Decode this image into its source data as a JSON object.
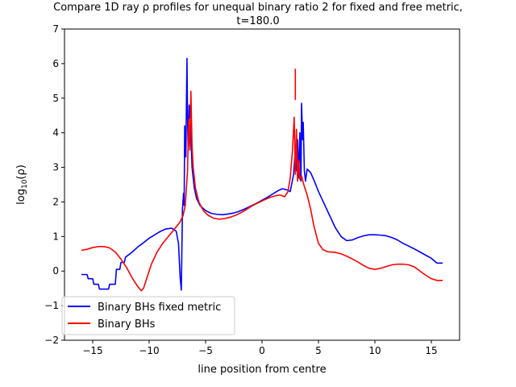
{
  "chart_data": {
    "type": "line",
    "title_line1": "Compare 1D ray ρ profiles for unequal binary ratio 2 for fixed and free metric,",
    "title_line2": "t=180.0",
    "xlabel": "line position from centre",
    "ylabel": "log10(ρ)",
    "ylabel_base": "log",
    "ylabel_sub": "10",
    "ylabel_tail": "(ρ)",
    "xlim": [
      -17.5,
      17.5
    ],
    "ylim": [
      -2,
      7
    ],
    "xticks": [
      -15,
      -10,
      -5,
      0,
      5,
      10,
      15
    ],
    "xtick_labels": [
      "−15",
      "−10",
      "−5",
      "0",
      "5",
      "10",
      "15"
    ],
    "yticks": [
      -2,
      -1,
      0,
      1,
      2,
      3,
      4,
      5,
      6,
      7
    ],
    "ytick_labels": [
      "−2",
      "−1",
      "0",
      "1",
      "2",
      "3",
      "4",
      "5",
      "6",
      "7"
    ],
    "legend_position": "lower-left",
    "series": [
      {
        "name": "Binary BHs fixed metric",
        "color": "#0000ff",
        "points": [
          [
            -16,
            -0.1
          ],
          [
            -15.5,
            -0.1
          ],
          [
            -15.4,
            -0.22
          ],
          [
            -15,
            -0.22
          ],
          [
            -14.9,
            -0.38
          ],
          [
            -14.5,
            -0.38
          ],
          [
            -14.4,
            -0.52
          ],
          [
            -13.6,
            -0.52
          ],
          [
            -13.5,
            -0.38
          ],
          [
            -13,
            -0.38
          ],
          [
            -12.9,
            0.05
          ],
          [
            -12.6,
            0.05
          ],
          [
            -12.5,
            0.25
          ],
          [
            -12.2,
            0.25
          ],
          [
            -12.1,
            0.4
          ],
          [
            -11.5,
            0.55
          ],
          [
            -11,
            0.7
          ],
          [
            -10.5,
            0.82
          ],
          [
            -10,
            0.95
          ],
          [
            -9.5,
            1.05
          ],
          [
            -9,
            1.15
          ],
          [
            -8.5,
            1.22
          ],
          [
            -8,
            1.24
          ],
          [
            -7.6,
            1.15
          ],
          [
            -7.4,
            0.8
          ],
          [
            -7.25,
            -0.2
          ],
          [
            -7.15,
            -0.55
          ],
          [
            -7.05,
            1.8
          ],
          [
            -6.95,
            2.25
          ],
          [
            -6.9,
            1.9
          ],
          [
            -6.85,
            4.2
          ],
          [
            -6.75,
            3.3
          ],
          [
            -6.65,
            6.15
          ],
          [
            -6.6,
            4.5
          ],
          [
            -6.55,
            3.6
          ],
          [
            -6.45,
            4.8
          ],
          [
            -6.35,
            4.4
          ],
          [
            -6.2,
            3.0
          ],
          [
            -6.0,
            2.4
          ],
          [
            -5.8,
            2.1
          ],
          [
            -5.5,
            1.9
          ],
          [
            -5,
            1.75
          ],
          [
            -4.5,
            1.67
          ],
          [
            -4,
            1.64
          ],
          [
            -3.5,
            1.63
          ],
          [
            -3,
            1.65
          ],
          [
            -2.5,
            1.68
          ],
          [
            -2,
            1.73
          ],
          [
            -1.5,
            1.8
          ],
          [
            -1,
            1.88
          ],
          [
            -0.5,
            1.96
          ],
          [
            0,
            2.05
          ],
          [
            0.5,
            2.14
          ],
          [
            1,
            2.24
          ],
          [
            1.5,
            2.34
          ],
          [
            1.8,
            2.38
          ],
          [
            2.2,
            2.35
          ],
          [
            2.5,
            2.3
          ],
          [
            2.8,
            2.8
          ],
          [
            2.95,
            3.5
          ],
          [
            3.05,
            2.9
          ],
          [
            3.15,
            3.8
          ],
          [
            3.25,
            2.7
          ],
          [
            3.35,
            4.0
          ],
          [
            3.45,
            2.6
          ],
          [
            3.5,
            4.85
          ],
          [
            3.6,
            3.8
          ],
          [
            3.65,
            4.3
          ],
          [
            3.75,
            2.9
          ],
          [
            3.85,
            2.6
          ],
          [
            4.0,
            2.95
          ],
          [
            4.3,
            2.85
          ],
          [
            4.7,
            2.55
          ],
          [
            5,
            2.3
          ],
          [
            5.5,
            1.95
          ],
          [
            6,
            1.6
          ],
          [
            6.5,
            1.25
          ],
          [
            7,
            1.0
          ],
          [
            7.5,
            0.88
          ],
          [
            8,
            0.9
          ],
          [
            8.5,
            0.97
          ],
          [
            9,
            1.02
          ],
          [
            9.5,
            1.05
          ],
          [
            10,
            1.05
          ],
          [
            10.5,
            1.04
          ],
          [
            11,
            1.02
          ],
          [
            11.5,
            0.97
          ],
          [
            12,
            0.9
          ],
          [
            12.5,
            0.8
          ],
          [
            13,
            0.72
          ],
          [
            13.5,
            0.64
          ],
          [
            14,
            0.55
          ],
          [
            14.5,
            0.46
          ],
          [
            15,
            0.37
          ],
          [
            15.5,
            0.23
          ],
          [
            16,
            0.23
          ]
        ]
      },
      {
        "name": "Binary BHs",
        "color": "#ff0000",
        "points": [
          [
            -16,
            0.6
          ],
          [
            -15.5,
            0.63
          ],
          [
            -15,
            0.68
          ],
          [
            -14.5,
            0.71
          ],
          [
            -14,
            0.71
          ],
          [
            -13.5,
            0.67
          ],
          [
            -13,
            0.55
          ],
          [
            -12.5,
            0.35
          ],
          [
            -12,
            0.1
          ],
          [
            -11.5,
            -0.2
          ],
          [
            -11,
            -0.45
          ],
          [
            -10.7,
            -0.57
          ],
          [
            -10.5,
            -0.5
          ],
          [
            -10.2,
            -0.2
          ],
          [
            -9.8,
            0.2
          ],
          [
            -9.3,
            0.55
          ],
          [
            -8.8,
            0.8
          ],
          [
            -8.3,
            1.0
          ],
          [
            -7.8,
            1.2
          ],
          [
            -7.3,
            1.4
          ],
          [
            -7.0,
            1.6
          ],
          [
            -6.8,
            1.9
          ],
          [
            -6.6,
            2.9
          ],
          [
            -6.5,
            4.4
          ],
          [
            -6.4,
            3.5
          ],
          [
            -6.3,
            5.2
          ],
          [
            -6.2,
            3.6
          ],
          [
            -6.1,
            3.0
          ],
          [
            -5.9,
            2.4
          ],
          [
            -5.6,
            2.0
          ],
          [
            -5.2,
            1.75
          ],
          [
            -4.8,
            1.62
          ],
          [
            -4.3,
            1.53
          ],
          [
            -3.8,
            1.5
          ],
          [
            -3.3,
            1.52
          ],
          [
            -2.8,
            1.56
          ],
          [
            -2.3,
            1.62
          ],
          [
            -1.8,
            1.7
          ],
          [
            -1.3,
            1.8
          ],
          [
            -0.8,
            1.9
          ],
          [
            -0.3,
            1.98
          ],
          [
            0.2,
            2.06
          ],
          [
            0.7,
            2.13
          ],
          [
            1.2,
            2.18
          ],
          [
            1.6,
            2.2
          ],
          [
            2.0,
            2.15
          ],
          [
            2.3,
            2.3
          ],
          [
            2.5,
            2.7
          ],
          [
            2.7,
            3.5
          ],
          [
            2.85,
            4.45
          ],
          [
            2.95,
            2.8
          ],
          [
            3.05,
            4.1
          ],
          [
            3.15,
            2.6
          ],
          [
            3.25,
            3.2
          ],
          [
            3.35,
            2.65
          ],
          [
            3.5,
            2.75
          ],
          [
            3.7,
            2.5
          ],
          [
            4.0,
            2.2
          ],
          [
            4.3,
            1.8
          ],
          [
            4.6,
            1.3
          ],
          [
            5.0,
            0.8
          ],
          [
            5.4,
            0.62
          ],
          [
            5.8,
            0.56
          ],
          [
            6.5,
            0.54
          ],
          [
            7.0,
            0.5
          ],
          [
            7.5,
            0.43
          ],
          [
            8.0,
            0.35
          ],
          [
            8.5,
            0.26
          ],
          [
            9.0,
            0.16
          ],
          [
            9.5,
            0.08
          ],
          [
            10,
            0.05
          ],
          [
            10.5,
            0.08
          ],
          [
            11,
            0.13
          ],
          [
            11.5,
            0.18
          ],
          [
            12,
            0.2
          ],
          [
            12.5,
            0.2
          ],
          [
            13,
            0.18
          ],
          [
            13.5,
            0.12
          ],
          [
            14,
            0.0
          ],
          [
            14.5,
            -0.12
          ],
          [
            15,
            -0.22
          ],
          [
            15.5,
            -0.27
          ],
          [
            16,
            -0.27
          ]
        ],
        "segment2": [
          [
            2.95,
            4.95
          ],
          [
            2.95,
            5.85
          ]
        ]
      }
    ]
  }
}
